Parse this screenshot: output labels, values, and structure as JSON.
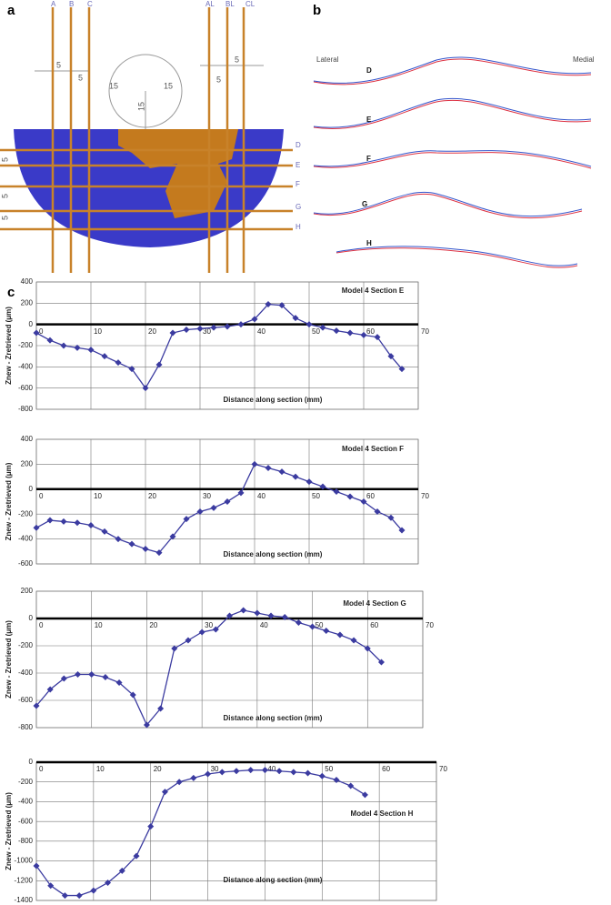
{
  "panel_labels": [
    "a",
    "b",
    "c"
  ],
  "panel_a": {
    "section_lines": [
      "A",
      "B",
      "C",
      "AL",
      "BL",
      "CL"
    ],
    "cross_lines": [
      "D",
      "E",
      "F",
      "G",
      "H"
    ],
    "dimensions": [
      "5",
      "5",
      "15",
      "15",
      "15",
      "5",
      "5",
      "5",
      "5",
      "5"
    ]
  },
  "panel_b": {
    "lateral": "Lateral",
    "medial": "Medial",
    "sections": [
      "D",
      "E",
      "F",
      "G",
      "H"
    ]
  },
  "chart_data": [
    {
      "type": "line",
      "annotation": "Model 4 Section E",
      "x_label": "Distance along section (mm)",
      "y_label": "Znew - Zretrieved (μm)",
      "x": [
        0,
        2.5,
        5,
        7.5,
        10,
        12.5,
        15,
        17.5,
        20,
        22.5,
        25,
        27.5,
        30,
        32.5,
        35,
        37.5,
        40,
        42.5,
        45,
        47.5,
        50,
        52.5,
        55,
        57.5,
        60,
        62.5,
        65,
        67
      ],
      "values": [
        -80,
        -150,
        -200,
        -220,
        -240,
        -300,
        -360,
        -420,
        -600,
        -380,
        -80,
        -50,
        -40,
        -30,
        -20,
        0,
        50,
        190,
        180,
        60,
        0,
        -30,
        -60,
        -80,
        -100,
        -120,
        -300,
        -420
      ],
      "color": "#3b3ba0",
      "xlim": [
        0,
        70
      ],
      "xticks": [
        0,
        10,
        20,
        30,
        40,
        50,
        60,
        70
      ],
      "ylim": [
        -800,
        400
      ],
      "yticks": [
        -800,
        -600,
        -400,
        -200,
        0,
        200,
        400
      ],
      "grid": true
    },
    {
      "type": "line",
      "annotation": "Model 4 Section F",
      "x_label": "Distance along section (mm)",
      "y_label": "Znew - Zretrieved (μm)",
      "x": [
        0,
        2.5,
        5,
        7.5,
        10,
        12.5,
        15,
        17.5,
        20,
        22.5,
        25,
        27.5,
        30,
        32.5,
        35,
        37.5,
        40,
        42.5,
        45,
        47.5,
        50,
        52.5,
        55,
        57.5,
        60,
        62.5,
        65,
        67
      ],
      "values": [
        -310,
        -250,
        -260,
        -270,
        -290,
        -340,
        -400,
        -440,
        -480,
        -510,
        -380,
        -240,
        -180,
        -150,
        -100,
        -30,
        200,
        170,
        140,
        100,
        60,
        20,
        -20,
        -60,
        -100,
        -180,
        -230,
        -330
      ],
      "color": "#3b3ba0",
      "xlim": [
        0,
        70
      ],
      "xticks": [
        0,
        10,
        20,
        30,
        40,
        50,
        60,
        70
      ],
      "ylim": [
        -600,
        400
      ],
      "yticks": [
        -600,
        -400,
        -200,
        0,
        200,
        400
      ],
      "grid": true
    },
    {
      "type": "line",
      "annotation": "Model 4 Section G",
      "x_label": "Distance along section (mm)",
      "y_label": "Znew - Zretrieved (μm)",
      "x": [
        0,
        2.5,
        5,
        7.5,
        10,
        12.5,
        15,
        17.5,
        20,
        22.5,
        25,
        27.5,
        30,
        32.5,
        35,
        37.5,
        40,
        42.5,
        45,
        47.5,
        50,
        52.5,
        55,
        57.5,
        60,
        62.5
      ],
      "values": [
        -640,
        -520,
        -440,
        -410,
        -410,
        -430,
        -470,
        -560,
        -780,
        -660,
        -220,
        -160,
        -100,
        -80,
        20,
        60,
        40,
        20,
        10,
        -30,
        -60,
        -90,
        -120,
        -160,
        -220,
        -320
      ],
      "color": "#3b3ba0",
      "xlim": [
        0,
        70
      ],
      "xticks": [
        0,
        10,
        20,
        30,
        40,
        50,
        60,
        70
      ],
      "ylim": [
        -800,
        200
      ],
      "yticks": [
        -800,
        -600,
        -400,
        -200,
        0,
        200
      ],
      "grid": true
    },
    {
      "type": "line",
      "annotation": "Model 4 Section H",
      "x_label": "Distance along section (mm)",
      "y_label": "Znew - Zretrieved (μm)",
      "x": [
        0,
        2.5,
        5,
        7.5,
        10,
        12.5,
        15,
        17.5,
        20,
        22.5,
        25,
        27.5,
        30,
        32.5,
        35,
        37.5,
        40,
        42.5,
        45,
        47.5,
        50,
        52.5,
        55,
        57.5
      ],
      "values": [
        -1050,
        -1250,
        -1350,
        -1350,
        -1300,
        -1220,
        -1100,
        -950,
        -650,
        -300,
        -200,
        -160,
        -120,
        -100,
        -90,
        -80,
        -80,
        -90,
        -100,
        -110,
        -140,
        -180,
        -240,
        -330
      ],
      "color": "#3b3ba0",
      "xlim": [
        0,
        70
      ],
      "xticks": [
        0,
        10,
        20,
        30,
        40,
        50,
        60,
        70
      ],
      "ylim": [
        -1400,
        0
      ],
      "yticks": [
        -1400,
        -1200,
        -1000,
        -800,
        -600,
        -400,
        -200,
        0
      ],
      "grid": true
    }
  ]
}
